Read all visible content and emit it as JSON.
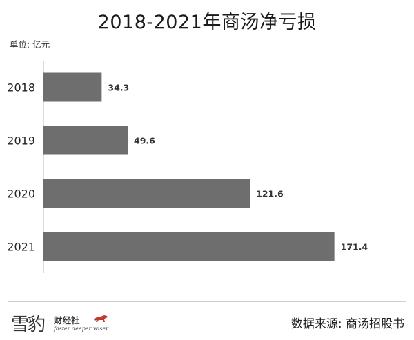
{
  "chart_data": {
    "type": "bar",
    "orientation": "horizontal",
    "title": "2018-2021年商汤净亏损",
    "unit_label": "单位: 亿元",
    "categories": [
      "2018",
      "2019",
      "2020",
      "2021"
    ],
    "values": [
      34.3,
      49.6,
      121.6,
      171.4
    ],
    "value_labels": [
      "34.3",
      "49.6",
      "121.6",
      "171.4"
    ],
    "xlim": [
      0,
      200
    ],
    "grid": false,
    "bar_color": "#6e6e6e"
  },
  "footer": {
    "logo_char": "雪豹",
    "logo_name": "财经社",
    "logo_slogan": "faster deeper wiser",
    "source": "数据来源: 商汤招股书"
  },
  "colors": {
    "bar": "#6e6e6e",
    "axis": "#cfcfcf",
    "logo_accent": "#c0392b"
  }
}
